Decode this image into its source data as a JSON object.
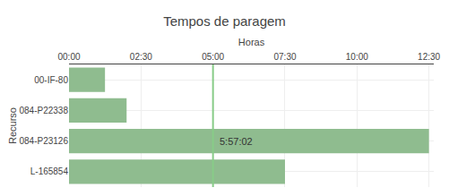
{
  "chart_data": {
    "type": "bar",
    "orientation": "horizontal",
    "title": "Tempos de paragem",
    "x_label": "Horas",
    "y_label": "Recurso",
    "categories": [
      "00-IF-80",
      "084-P22338",
      "084-P23126",
      "L-165854"
    ],
    "values": [
      75,
      120,
      750,
      450
    ],
    "color": "#8fbc8f",
    "xlim": [
      0,
      760
    ],
    "xticks": [
      {
        "value": 0,
        "label": "00:00"
      },
      {
        "value": 150,
        "label": "02:30"
      },
      {
        "value": 300,
        "label": "05:00"
      },
      {
        "value": 450,
        "label": "07:30"
      },
      {
        "value": 600,
        "label": "10:00"
      },
      {
        "value": 750,
        "label": "12:30"
      }
    ],
    "grid": true,
    "vlines": [
      {
        "x": 300,
        "color": "#88cc88"
      }
    ],
    "annotations": [
      {
        "text": "5:57:02",
        "x": 310,
        "category": "084-P23126"
      }
    ]
  }
}
